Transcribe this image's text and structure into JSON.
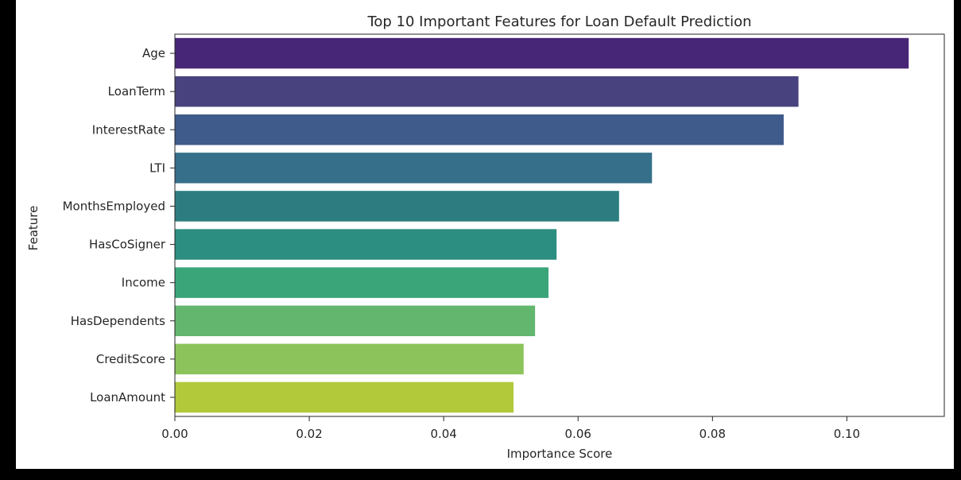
{
  "chart_data": {
    "type": "bar",
    "orientation": "horizontal",
    "title": "Top 10 Important Features for Loan Default Prediction",
    "xlabel": "Importance Score",
    "ylabel": "Feature",
    "xlim": [
      0,
      0.1145
    ],
    "xticks": [
      0.0,
      0.02,
      0.04,
      0.06,
      0.08,
      0.1
    ],
    "xtick_labels": [
      "0.00",
      "0.02",
      "0.04",
      "0.06",
      "0.08",
      "0.10"
    ],
    "grid": false,
    "legend": "none",
    "categories": [
      "Age",
      "LoanTerm",
      "InterestRate",
      "LTI",
      "MonthsEmployed",
      "HasCoSigner",
      "Income",
      "HasDependents",
      "CreditScore",
      "LoanAmount"
    ],
    "values": [
      0.1092,
      0.0928,
      0.0906,
      0.071,
      0.0661,
      0.0568,
      0.0556,
      0.0536,
      0.0519,
      0.0504
    ],
    "colors": [
      "#482677",
      "#48437e",
      "#3f5b8c",
      "#366f89",
      "#2d7d80",
      "#2b8e80",
      "#3ba57a",
      "#62b66e",
      "#8cc45b",
      "#b2c93a"
    ]
  }
}
